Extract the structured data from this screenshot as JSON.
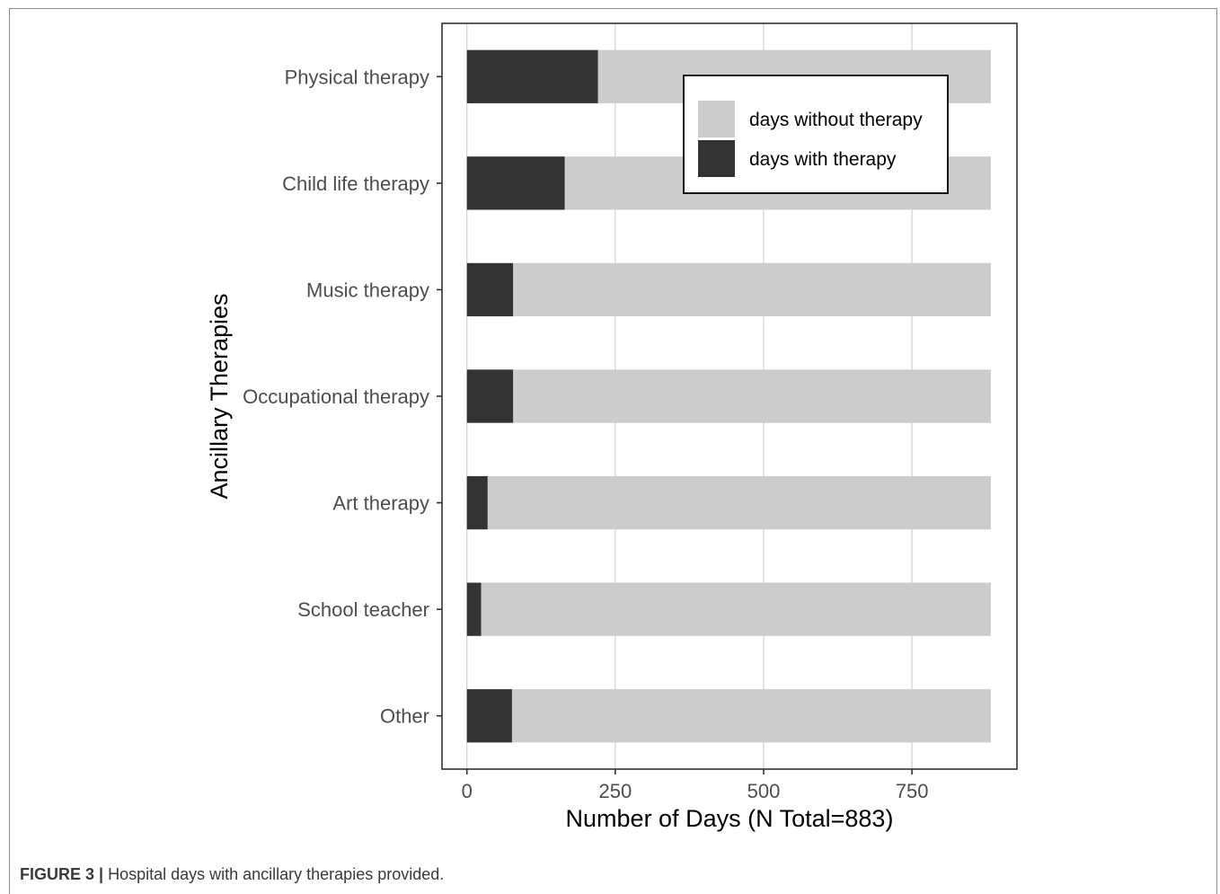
{
  "caption": {
    "label": "FIGURE 3 |",
    "text": " Hospital days with ancillary therapies provided."
  },
  "chart_data": {
    "type": "bar",
    "orientation": "horizontal",
    "stacked": true,
    "categories": [
      "Physical therapy",
      "Child life therapy",
      "Music therapy",
      "Occupational therapy",
      "Art therapy",
      "School teacher",
      "Other"
    ],
    "series": [
      {
        "name": "days with therapy",
        "color": "#333333",
        "values": [
          221,
          165,
          78,
          78,
          35,
          24,
          76
        ]
      },
      {
        "name": "days without therapy",
        "color": "#cccccc",
        "values": [
          662,
          718,
          805,
          805,
          848,
          859,
          807
        ]
      }
    ],
    "xlabel": "Number of Days (N Total=883)",
    "ylabel": "Ancillary Therapies",
    "xlim": [
      -42,
      927
    ],
    "xticks": [
      0,
      250,
      500,
      750
    ],
    "grid": true,
    "legend": {
      "position": "top-right",
      "entries": [
        {
          "label": "days without therapy",
          "color": "#cccccc"
        },
        {
          "label": "days with therapy",
          "color": "#333333"
        }
      ]
    }
  }
}
